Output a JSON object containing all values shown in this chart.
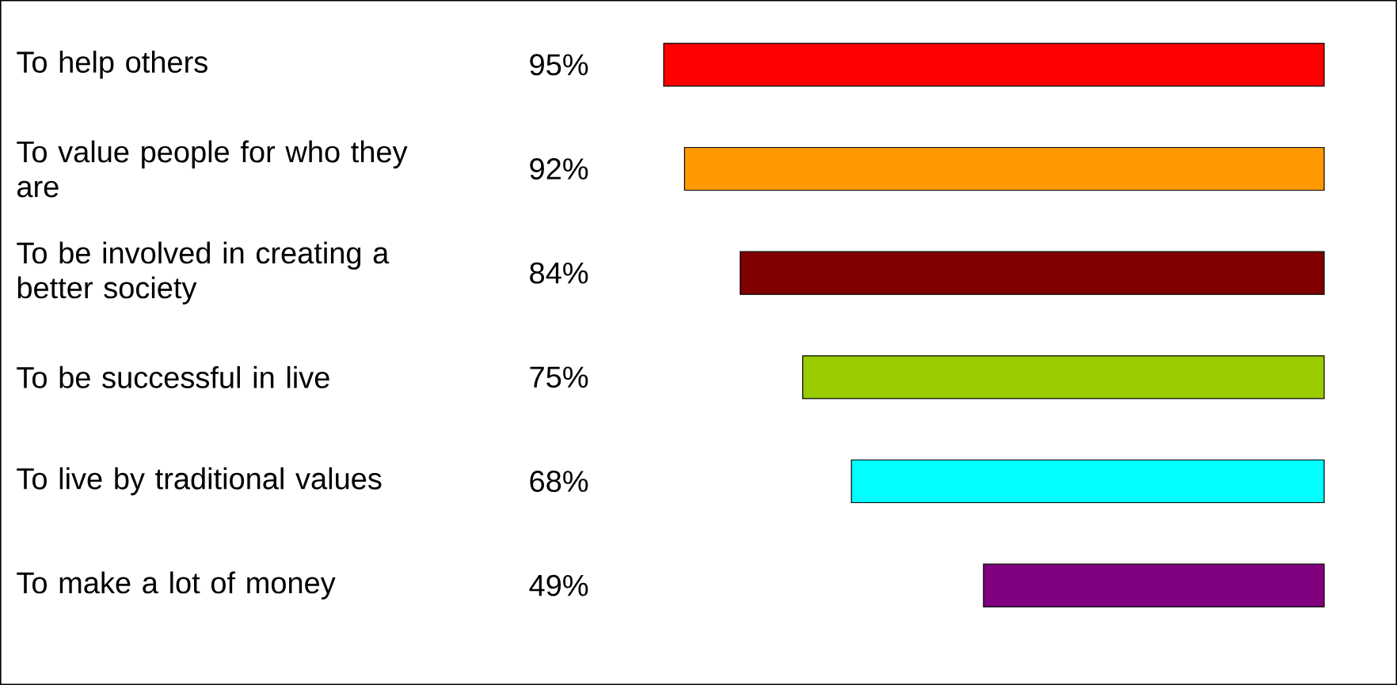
{
  "chart_data": {
    "type": "bar",
    "orientation": "horizontal",
    "categories": [
      "To help others",
      "To value people for who they are",
      "To be involved in creating a better society",
      "To be successful in live",
      "To live by traditional values",
      "To make a lot of money"
    ],
    "values": [
      95,
      92,
      84,
      75,
      68,
      49
    ],
    "value_labels": [
      "95%",
      "92%",
      "84%",
      "75%",
      "68%",
      "49%"
    ],
    "colors": [
      "#ff0000",
      "#ff9900",
      "#800000",
      "#99cc00",
      "#00ffff",
      "#800080"
    ]
  }
}
